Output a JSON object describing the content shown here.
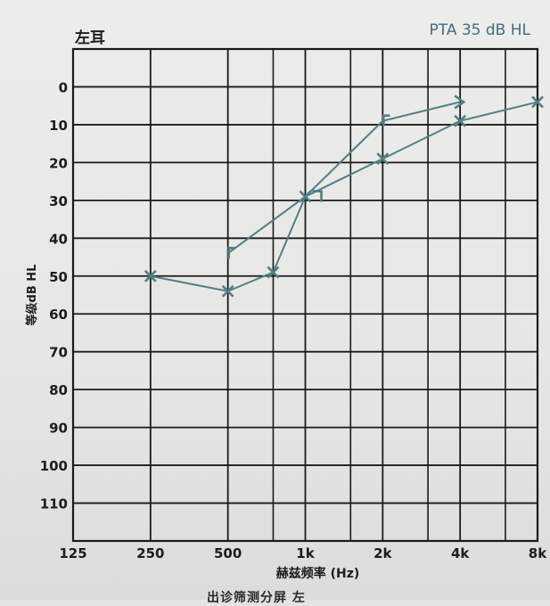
{
  "header": {
    "ear": "左耳",
    "pta": "PTA 35 dB HL"
  },
  "footer_partial": "出诊筛测分屏 左",
  "colors": {
    "grid": "#1a1a1a",
    "series": "#4f7f84",
    "text": "#1c1c1c"
  },
  "chart_data": {
    "type": "line",
    "xlabel": "赫兹频率 (Hz)",
    "ylabel": "等级dB HL",
    "x_ticks": [
      "125",
      "250",
      "500",
      "1k",
      "2k",
      "4k",
      "8k"
    ],
    "x_values": [
      125,
      250,
      500,
      1000,
      2000,
      4000,
      8000
    ],
    "y_ticks": [
      "0",
      "10",
      "20",
      "30",
      "40",
      "50",
      "60",
      "70",
      "80",
      "90",
      "100",
      "110"
    ],
    "ylim": [
      120,
      -10
    ],
    "y_reversed": true,
    "x_log": true,
    "grid": true,
    "series": [
      {
        "symbol": "x",
        "points": [
          {
            "x": 250,
            "y": 50
          },
          {
            "x": 500,
            "y": 54
          },
          {
            "x": 750,
            "y": 49
          },
          {
            "x": 1000,
            "y": 29
          },
          {
            "x": 2000,
            "y": 19
          },
          {
            "x": 4000,
            "y": 9
          },
          {
            "x": 8000,
            "y": 4
          }
        ]
      },
      {
        "symbol": "bracket",
        "points": [
          {
            "x": 500,
            "y": 44
          },
          {
            "x": 1000,
            "y": 29
          },
          {
            "x": 2000,
            "y": 9
          },
          {
            "x": 4000,
            "y": 4
          }
        ],
        "markers": [
          "left-bracket",
          "right-bracket",
          "left-bracket",
          "arrow-right"
        ]
      }
    ]
  }
}
